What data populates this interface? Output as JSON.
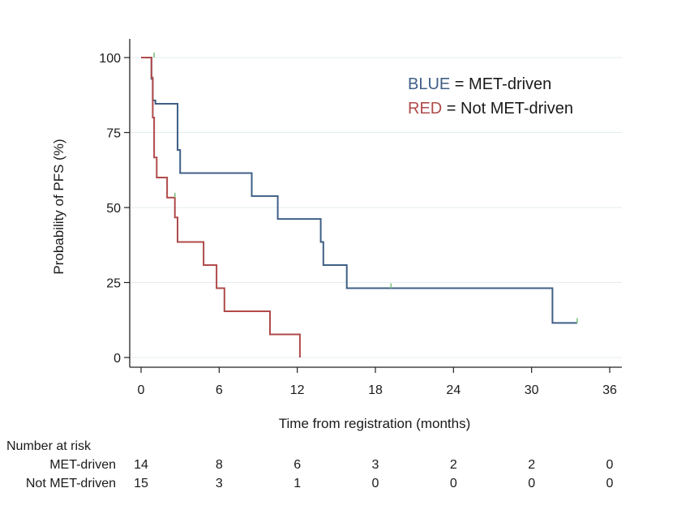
{
  "chart_data": {
    "type": "line",
    "xlabel": "Time from registration (months)",
    "ylabel": "Probability of PFS (%)",
    "xlim": [
      0,
      36
    ],
    "ylim": [
      0,
      100
    ],
    "xticks": [
      0,
      6,
      12,
      18,
      24,
      30,
      36
    ],
    "yticks": [
      0,
      25,
      50,
      75,
      100
    ],
    "grid": "horizontal",
    "legend": {
      "placement": "top-right",
      "entries": [
        {
          "key": "BLUE",
          "rest": " = MET-driven",
          "color": "#3f5f86"
        },
        {
          "key": "RED",
          "rest": " = Not MET-driven",
          "color": "#b04a4a"
        }
      ]
    },
    "series": [
      {
        "name": "MET-driven",
        "color": "#3f5f86",
        "x": [
          0,
          0.8,
          0.8,
          0.9,
          0.9,
          1.1,
          1.1,
          2.8,
          2.8,
          3.0,
          3.0,
          8.5,
          8.5,
          10.5,
          10.5,
          13.8,
          13.8,
          14.0,
          14.0,
          15.8,
          15.8,
          31.6,
          31.6,
          33.5
        ],
        "y": [
          100,
          100,
          92.9,
          92.9,
          85.7,
          85.7,
          84.6,
          84.6,
          69.2,
          69.2,
          61.5,
          61.5,
          53.8,
          53.8,
          46.2,
          46.2,
          38.5,
          38.5,
          30.8,
          30.8,
          23.1,
          23.1,
          11.5,
          11.5
        ]
      },
      {
        "name": "Not MET-driven",
        "color": "#b04a4a",
        "x": [
          0,
          0.8,
          0.8,
          0.9,
          0.9,
          1.0,
          1.0,
          1.2,
          1.2,
          2.0,
          2.0,
          2.6,
          2.6,
          2.8,
          2.8,
          4.8,
          4.8,
          5.8,
          5.8,
          6.4,
          6.4,
          9.9,
          9.9,
          12.2,
          12.2
        ],
        "y": [
          100,
          100,
          93.3,
          93.3,
          80,
          80,
          66.7,
          66.7,
          60,
          60,
          53.3,
          53.3,
          46.7,
          46.7,
          38.5,
          38.5,
          30.8,
          30.8,
          23.1,
          23.1,
          15.4,
          15.4,
          7.7,
          7.7,
          0
        ]
      }
    ],
    "censor_marks": [
      {
        "x": 1.0,
        "y": 100
      },
      {
        "x": 2.6,
        "y": 53.3
      },
      {
        "x": 19.2,
        "y": 23.1
      },
      {
        "x": 33.5,
        "y": 11.5
      }
    ],
    "censor_color": "#7cc47c",
    "risk_table": {
      "title": "Number at risk",
      "rows": [
        {
          "label": "MET-driven",
          "counts": [
            14,
            8,
            6,
            3,
            2,
            2,
            0
          ]
        },
        {
          "label": "Not MET-driven",
          "counts": [
            15,
            3,
            1,
            0,
            0,
            0,
            0
          ]
        }
      ]
    }
  }
}
